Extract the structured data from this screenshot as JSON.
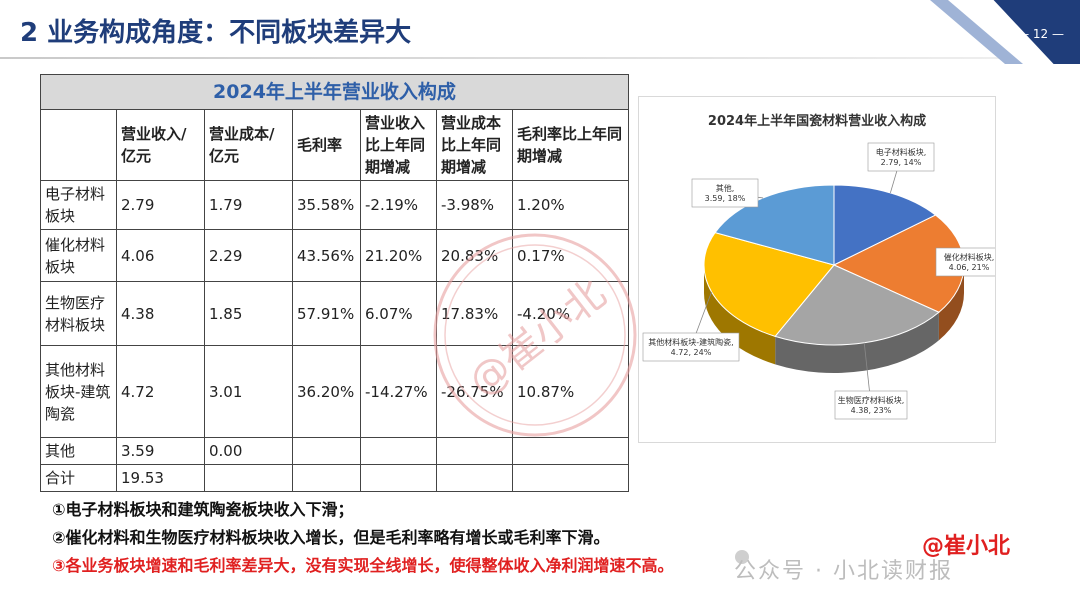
{
  "header": {
    "title": "2 业务构成角度：不同板块差异大",
    "page_number": "— 12 —"
  },
  "table": {
    "title": "2024年上半年营业收入构成",
    "columns": [
      "",
      "营业收入/亿元",
      "营业成本/亿元",
      "毛利率",
      "营业收入比上年同期增减",
      "营业成本比上年同期增减",
      "毛利率比上年同期增减"
    ],
    "rows": [
      {
        "name": "电子材料板块",
        "revenue": "2.79",
        "cost": "1.79",
        "margin": "35.58%",
        "rev_change": "-2.19%",
        "cost_change": "-3.98%",
        "margin_change": "1.20%"
      },
      {
        "name": "催化材料板块",
        "revenue": "4.06",
        "cost": "2.29",
        "margin": "43.56%",
        "rev_change": "21.20%",
        "cost_change": "20.83%",
        "margin_change": "0.17%"
      },
      {
        "name": "生物医疗材料板块",
        "revenue": "4.38",
        "cost": "1.85",
        "margin": "57.91%",
        "rev_change": "6.07%",
        "cost_change": "17.83%",
        "margin_change": "-4.20%"
      },
      {
        "name": "其他材料板块-建筑陶瓷",
        "revenue": "4.72",
        "cost": "3.01",
        "margin": "36.20%",
        "rev_change": "-14.27%",
        "cost_change": "-26.75%",
        "margin_change": "10.87%"
      },
      {
        "name": "其他",
        "revenue": "3.59",
        "cost": "0.00",
        "margin": "",
        "rev_change": "",
        "cost_change": "",
        "margin_change": ""
      },
      {
        "name": "合计",
        "revenue": "19.53",
        "cost": "",
        "margin": "",
        "rev_change": "",
        "cost_change": "",
        "margin_change": ""
      }
    ]
  },
  "chart_data": {
    "type": "pie",
    "title": "2024年上半年国瓷材料营业收入构成",
    "slices": [
      {
        "label": "电子材料板块, 2.79, 14%",
        "value": 2.79,
        "color": "#4472c4"
      },
      {
        "label": "催化材料板块, 4.06, 21%",
        "value": 4.06,
        "color": "#ed7d31"
      },
      {
        "label": "生物医疗材料板块, 4.38, 23%",
        "value": 4.38,
        "color": "#a5a5a5"
      },
      {
        "label": "其他材料板块-建筑陶瓷, 4.72, 24%",
        "value": 4.72,
        "color": "#ffc000"
      },
      {
        "label": "其他, 3.59, 18%",
        "value": 3.59,
        "color": "#5b9bd5"
      }
    ]
  },
  "notes": [
    "①电子材料板块和建筑陶瓷板块收入下滑；",
    "②催化材料和生物医疗材料板块收入增长，但是毛利率略有增长或毛利率下滑。",
    "③各业务板块增速和毛利率差异大，没有实现全线增长，使得整体收入净利润增速不高。"
  ],
  "watermark": {
    "account": "公众号 · 小北读财报",
    "author": "@崔小北",
    "stamp_text": "@崔小北"
  }
}
